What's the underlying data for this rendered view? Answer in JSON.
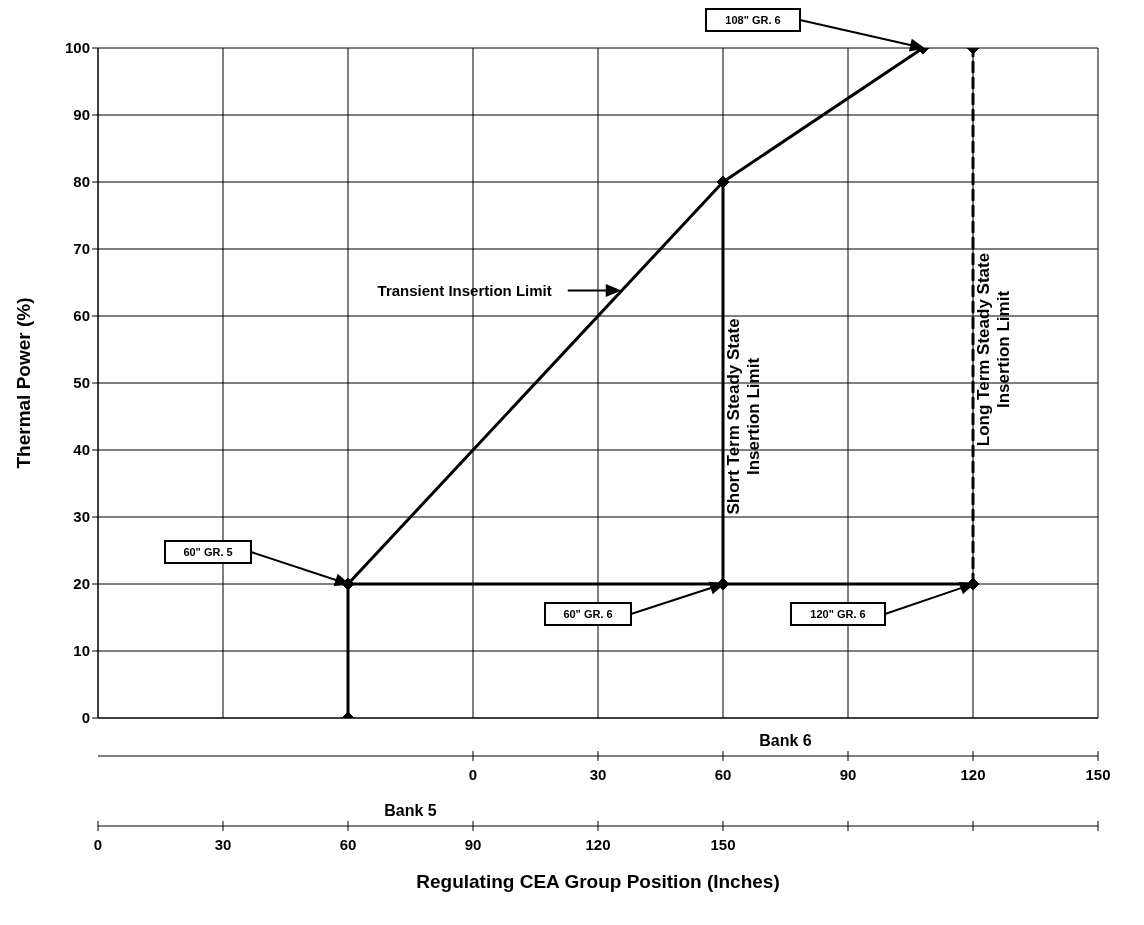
{
  "chart_data": {
    "type": "line",
    "xlabel": "Regulating CEA Group Position  (Inches)",
    "ylabel": "Thermal Power  (%)",
    "x2label": "Bank 6",
    "xlim": [
      0,
      240
    ],
    "xticks": [
      0,
      30,
      60,
      90,
      120,
      150,
      {
        "value": 180,
        "label": null
      },
      {
        "value": 210,
        "label": null
      },
      {
        "value": 240,
        "label": null
      }
    ],
    "x2lim": [
      -90,
      150
    ],
    "x2ticks": [
      0,
      30,
      60,
      90,
      120,
      150
    ],
    "ylim": [
      0,
      100
    ],
    "yticks": [
      0,
      10,
      20,
      30,
      40,
      50,
      60,
      70,
      80,
      90,
      100
    ],
    "grid": true,
    "marker": "diamond",
    "line_style": "solid",
    "series": [
      {
        "name": "Transient Insertion Limit",
        "color": "#000000",
        "x": [
          60,
          150,
          198
        ],
        "values": [
          20,
          80,
          100
        ]
      },
      {
        "name": "Short Term Steady State Insertion Limit",
        "color": "#000000",
        "x": [
          150,
          150
        ],
        "values": [
          20,
          80
        ]
      },
      {
        "name": "Long Term Steady State Insertion Limit",
        "color": "#000000",
        "x": [
          210,
          210
        ],
        "values": [
          20,
          100
        ],
        "line_style": "dashed"
      },
      {
        "color": "#000000",
        "x": [
          60,
          150,
          210
        ],
        "values": [
          20,
          20,
          20
        ]
      },
      {
        "color": "#000000",
        "x": [
          60,
          60
        ],
        "values": [
          0,
          20
        ]
      }
    ],
    "annotations": [
      "Bank 5",
      "108\" GR. 6",
      "60\" GR. 5",
      "60\" GR. 6",
      "120\" GR. 6"
    ]
  }
}
